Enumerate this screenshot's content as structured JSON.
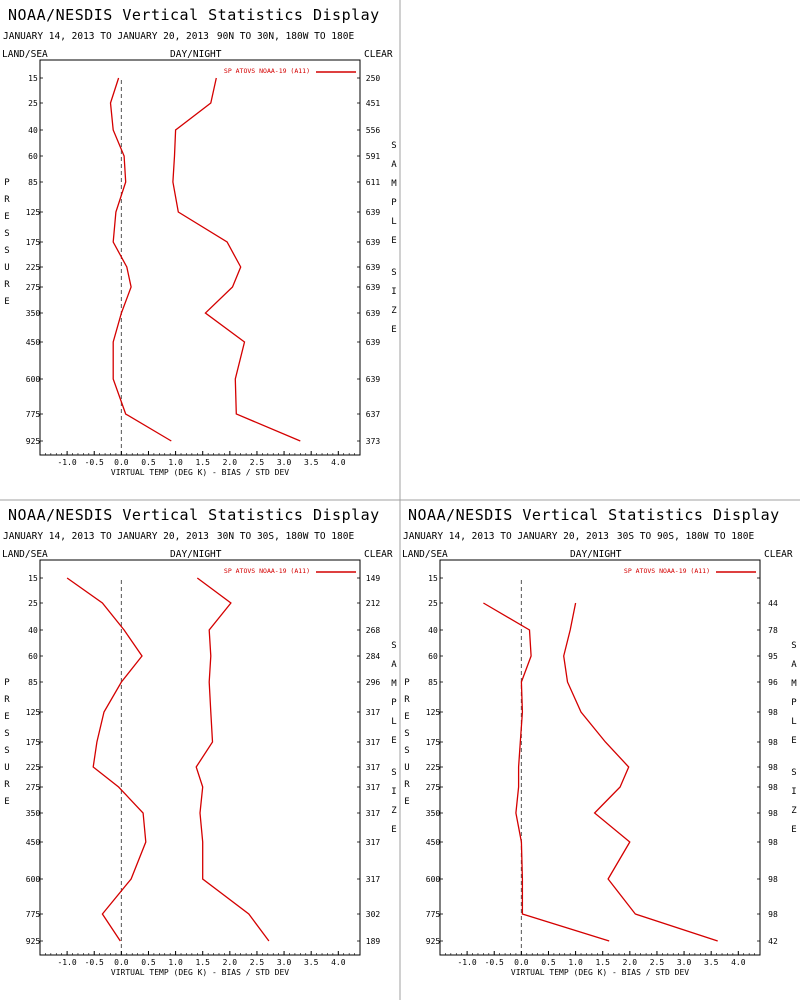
{
  "colors": {
    "series": "#d40000",
    "axis": "#000000",
    "zero_line": "#555555",
    "divider": "#a0a0a0"
  },
  "chart_data": [
    {
      "type": "line",
      "title": "NOAA/NESDIS Vertical Statistics Display",
      "date_range": "JANUARY 14, 2013 TO JANUARY 20, 2013",
      "region": "90N TO 30N, 180W TO 180E",
      "top_left_label": "LAND/SEA",
      "top_center_label": "DAY/NIGHT",
      "top_right_label": "CLEAR",
      "legend": "SP ATOVS NOAA-19 (A11)",
      "xlabel": "VIRTUAL TEMP (DEG K) - BIAS / STD DEV",
      "left_vertical_label": "PRESSURE",
      "right_vertical_label": "SAMPLE SIZE",
      "x_ticks": [
        -1.0,
        -0.5,
        0.0,
        0.5,
        1.0,
        1.5,
        2.0,
        2.5,
        3.0,
        3.5,
        4.0
      ],
      "x_tick_labels": [
        "-1.0",
        "-0.5",
        "0.0",
        "0.5",
        "1.0",
        "1.5",
        "2.0",
        "2.5",
        "3.0",
        "3.5",
        "4.0"
      ],
      "xlim": [
        -1.5,
        4.4
      ],
      "pressure_levels": [
        15,
        25,
        40,
        60,
        85,
        125,
        175,
        225,
        275,
        350,
        450,
        600,
        775,
        925
      ],
      "series": [
        {
          "name": "bias",
          "values": [
            -0.05,
            -0.2,
            -0.15,
            0.05,
            0.08,
            -0.1,
            -0.15,
            0.1,
            0.18,
            0.0,
            -0.15,
            -0.15,
            0.08,
            0.92
          ]
        },
        {
          "name": "std dev",
          "values": [
            1.75,
            1.65,
            1.0,
            0.98,
            0.95,
            1.05,
            1.95,
            2.2,
            2.05,
            1.55,
            2.27,
            2.1,
            2.12,
            3.3
          ]
        }
      ],
      "sample_size": [
        "250",
        "451",
        "556",
        "591",
        "611",
        "639",
        "639",
        "639",
        "639",
        "639",
        "639",
        "639",
        "637",
        "373"
      ]
    },
    {
      "type": "line",
      "title": "NOAA/NESDIS Vertical Statistics Display",
      "date_range": "JANUARY 14, 2013 TO JANUARY 20, 2013",
      "region": "30N TO 30S, 180W TO 180E",
      "top_left_label": "LAND/SEA",
      "top_center_label": "DAY/NIGHT",
      "top_right_label": "CLEAR",
      "legend": "SP ATOVS NOAA-19 (A11)",
      "xlabel": "VIRTUAL TEMP (DEG K) - BIAS / STD DEV",
      "left_vertical_label": "PRESSURE",
      "right_vertical_label": "SAMPLE SIZE",
      "x_ticks": [
        -1.0,
        -0.5,
        0.0,
        0.5,
        1.0,
        1.5,
        2.0,
        2.5,
        3.0,
        3.5,
        4.0
      ],
      "x_tick_labels": [
        "-1.0",
        "-0.5",
        "0.0",
        "0.5",
        "1.0",
        "1.5",
        "2.0",
        "2.5",
        "3.0",
        "3.5",
        "4.0"
      ],
      "xlim": [
        -1.5,
        4.4
      ],
      "pressure_levels": [
        15,
        25,
        40,
        60,
        85,
        125,
        175,
        225,
        275,
        350,
        450,
        600,
        775,
        925
      ],
      "series": [
        {
          "name": "bias",
          "values": [
            -1.0,
            -0.35,
            0.05,
            0.38,
            0.0,
            -0.32,
            -0.45,
            -0.52,
            -0.05,
            0.4,
            0.45,
            0.18,
            -0.35,
            -0.02
          ]
        },
        {
          "name": "std dev",
          "values": [
            1.4,
            2.02,
            1.62,
            1.65,
            1.62,
            1.65,
            1.68,
            1.38,
            1.5,
            1.45,
            1.5,
            1.5,
            2.35,
            2.72
          ]
        }
      ],
      "sample_size": [
        "149",
        "212",
        "268",
        "284",
        "296",
        "317",
        "317",
        "317",
        "317",
        "317",
        "317",
        "317",
        "302",
        "189"
      ]
    },
    {
      "type": "line",
      "title": "NOAA/NESDIS Vertical Statistics Display",
      "date_range": "JANUARY 14, 2013 TO JANUARY 20, 2013",
      "region": "30S TO 90S, 180W TO 180E",
      "top_left_label": "LAND/SEA",
      "top_center_label": "DAY/NIGHT",
      "top_right_label": "CLEAR",
      "legend": "SP ATOVS NOAA-19 (A11)",
      "xlabel": "VIRTUAL TEMP (DEG K) - BIAS / STD DEV",
      "left_vertical_label": "PRESSURE",
      "right_vertical_label": "SAMPLE SIZE",
      "x_ticks": [
        -1.0,
        -0.5,
        0.0,
        0.5,
        1.0,
        1.5,
        2.0,
        2.5,
        3.0,
        3.5,
        4.0
      ],
      "x_tick_labels": [
        "-1.0",
        "-0.5",
        "0.0",
        "0.5",
        "1.0",
        "1.5",
        "2.0",
        "2.5",
        "3.0",
        "3.5",
        "4.0"
      ],
      "xlim": [
        -1.5,
        4.4
      ],
      "pressure_levels": [
        15,
        25,
        40,
        60,
        85,
        125,
        175,
        225,
        275,
        350,
        450,
        600,
        775,
        925
      ],
      "series": [
        {
          "name": "bias",
          "values": [
            null,
            -0.7,
            0.15,
            0.18,
            0.0,
            0.02,
            -0.02,
            -0.05,
            -0.05,
            -0.1,
            0.0,
            0.02,
            0.02,
            1.62
          ]
        },
        {
          "name": "std dev",
          "values": [
            null,
            1.0,
            0.9,
            0.78,
            0.85,
            1.1,
            1.55,
            1.98,
            1.82,
            1.35,
            2.0,
            1.6,
            2.1,
            3.62
          ]
        }
      ],
      "sample_size": [
        "",
        "44",
        "78",
        "95",
        "96",
        "98",
        "98",
        "98",
        "98",
        "98",
        "98",
        "98",
        "98",
        "42"
      ]
    }
  ]
}
